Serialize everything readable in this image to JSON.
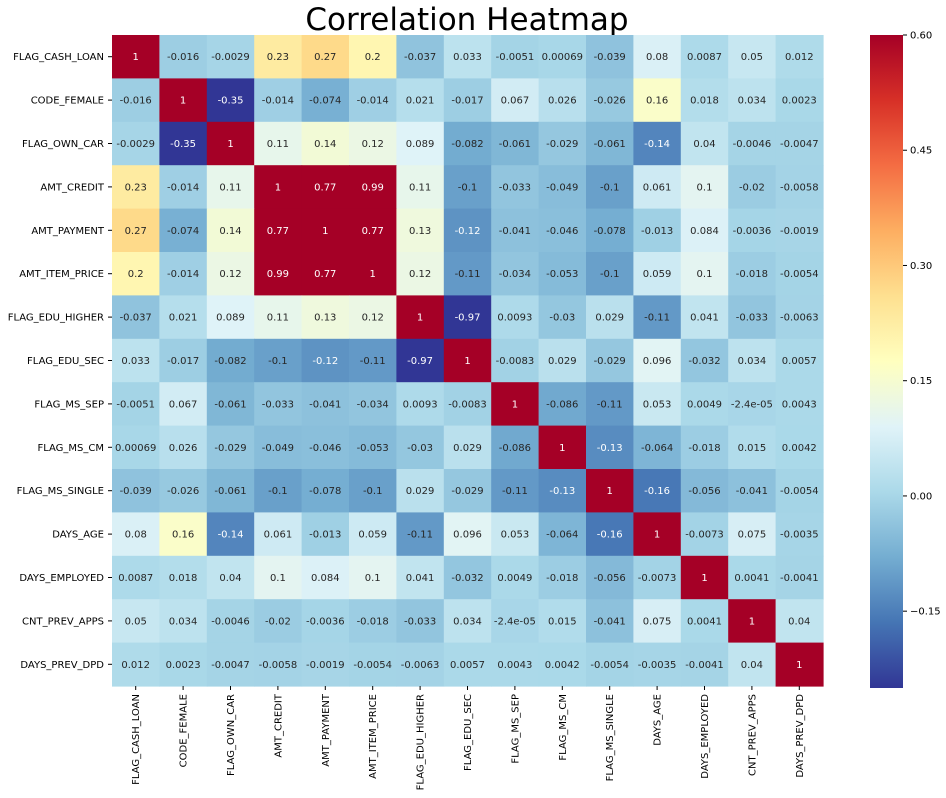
{
  "chart_data": {
    "type": "heatmap",
    "title": "Correlation Heatmap",
    "labels": [
      "FLAG_CASH_LOAN",
      "CODE_FEMALE",
      "FLAG_OWN_CAR",
      "AMT_CREDIT",
      "AMT_PAYMENT",
      "AMT_ITEM_PRICE",
      "FLAG_EDU_HIGHER",
      "FLAG_EDU_SEC",
      "FLAG_MS_SEP",
      "FLAG_MS_CM",
      "FLAG_MS_SINGLE",
      "DAYS_AGE",
      "DAYS_EMPLOYED",
      "CNT_PREV_APPS",
      "DAYS_PREV_DPD"
    ],
    "matrix": [
      [
        1,
        -0.016,
        -0.0029,
        0.23,
        0.27,
        0.2,
        -0.037,
        0.033,
        -0.0051,
        0.00069,
        -0.039,
        0.08,
        0.0087,
        0.05,
        0.012
      ],
      [
        -0.016,
        1,
        -0.35,
        -0.014,
        -0.074,
        -0.014,
        0.021,
        -0.017,
        0.067,
        0.026,
        -0.026,
        0.16,
        0.018,
        0.034,
        0.0023
      ],
      [
        -0.0029,
        -0.35,
        1,
        0.11,
        0.14,
        0.12,
        0.089,
        -0.082,
        -0.061,
        -0.029,
        -0.061,
        -0.14,
        0.04,
        -0.0046,
        -0.0047
      ],
      [
        0.23,
        -0.014,
        0.11,
        1,
        0.77,
        0.99,
        0.11,
        -0.1,
        -0.033,
        -0.049,
        -0.1,
        0.061,
        0.1,
        -0.02,
        -0.0058
      ],
      [
        0.27,
        -0.074,
        0.14,
        0.77,
        1,
        0.77,
        0.13,
        -0.12,
        -0.041,
        -0.046,
        -0.078,
        -0.013,
        0.084,
        -0.0036,
        -0.0019
      ],
      [
        0.2,
        -0.014,
        0.12,
        0.99,
        0.77,
        1,
        0.12,
        -0.11,
        -0.034,
        -0.053,
        -0.1,
        0.059,
        0.1,
        -0.018,
        -0.0054
      ],
      [
        -0.037,
        0.021,
        0.089,
        0.11,
        0.13,
        0.12,
        1,
        -0.97,
        0.0093,
        -0.03,
        0.029,
        -0.11,
        0.041,
        -0.033,
        -0.0063
      ],
      [
        0.033,
        -0.017,
        -0.082,
        -0.1,
        -0.12,
        -0.11,
        -0.97,
        1,
        -0.0083,
        0.029,
        -0.029,
        0.096,
        -0.032,
        0.034,
        0.0057
      ],
      [
        -0.0051,
        0.067,
        -0.061,
        -0.033,
        -0.041,
        -0.034,
        0.0093,
        -0.0083,
        1,
        -0.086,
        -0.11,
        0.053,
        0.0049,
        -2.4e-05,
        0.0043
      ],
      [
        0.00069,
        0.026,
        -0.029,
        -0.049,
        -0.046,
        -0.053,
        -0.03,
        0.029,
        -0.086,
        1,
        -0.13,
        -0.064,
        -0.018,
        0.015,
        0.0042
      ],
      [
        -0.039,
        -0.026,
        -0.061,
        -0.1,
        -0.078,
        -0.1,
        0.029,
        -0.029,
        -0.11,
        -0.13,
        1,
        -0.16,
        -0.056,
        -0.041,
        -0.0054
      ],
      [
        0.08,
        0.16,
        -0.14,
        0.061,
        -0.013,
        0.059,
        -0.11,
        0.096,
        0.053,
        -0.064,
        -0.16,
        1,
        -0.0073,
        0.075,
        -0.0035
      ],
      [
        0.0087,
        0.018,
        0.04,
        0.1,
        0.084,
        0.1,
        0.041,
        -0.032,
        0.0049,
        -0.018,
        -0.056,
        -0.0073,
        1,
        0.0041,
        -0.0041
      ],
      [
        0.05,
        0.034,
        -0.0046,
        -0.02,
        -0.0036,
        -0.018,
        -0.033,
        0.034,
        -2.4e-05,
        0.015,
        -0.041,
        0.075,
        0.0041,
        1,
        0.04
      ],
      [
        0.012,
        0.0023,
        -0.0047,
        -0.0058,
        -0.0019,
        -0.0054,
        -0.0063,
        0.0057,
        0.0043,
        0.0042,
        -0.0054,
        -0.0035,
        -0.0041,
        0.04,
        1
      ]
    ],
    "cell_text": [
      [
        "1",
        "-0.016",
        "-0.0029",
        "0.23",
        "0.27",
        "0.2",
        "-0.037",
        "0.033",
        "-0.0051",
        "0.00069",
        "-0.039",
        "0.08",
        "0.0087",
        "0.05",
        "0.012"
      ],
      [
        "-0.016",
        "1",
        "-0.35",
        "-0.014",
        "-0.074",
        "-0.014",
        "0.021",
        "-0.017",
        "0.067",
        "0.026",
        "-0.026",
        "0.16",
        "0.018",
        "0.034",
        "0.0023"
      ],
      [
        "-0.0029",
        "-0.35",
        "1",
        "0.11",
        "0.14",
        "0.12",
        "0.089",
        "-0.082",
        "-0.061",
        "-0.029",
        "-0.061",
        "-0.14",
        "0.04",
        "-0.0046",
        "-0.0047"
      ],
      [
        "0.23",
        "-0.014",
        "0.11",
        "1",
        "0.77",
        "0.99",
        "0.11",
        "-0.1",
        "-0.033",
        "-0.049",
        "-0.1",
        "0.061",
        "0.1",
        "-0.02",
        "-0.0058"
      ],
      [
        "0.27",
        "-0.074",
        "0.14",
        "0.77",
        "1",
        "0.77",
        "0.13",
        "-0.12",
        "-0.041",
        "-0.046",
        "-0.078",
        "-0.013",
        "0.084",
        "-0.0036",
        "-0.0019"
      ],
      [
        "0.2",
        "-0.014",
        "0.12",
        "0.99",
        "0.77",
        "1",
        "0.12",
        "-0.11",
        "-0.034",
        "-0.053",
        "-0.1",
        "0.059",
        "0.1",
        "-0.018",
        "-0.0054"
      ],
      [
        "-0.037",
        "0.021",
        "0.089",
        "0.11",
        "0.13",
        "0.12",
        "1",
        "-0.97",
        "0.0093",
        "-0.03",
        "0.029",
        "-0.11",
        "0.041",
        "-0.033",
        "-0.0063"
      ],
      [
        "0.033",
        "-0.017",
        "-0.082",
        "-0.1",
        "-0.12",
        "-0.11",
        "-0.97",
        "1",
        "-0.0083",
        "0.029",
        "-0.029",
        "0.096",
        "-0.032",
        "0.034",
        "0.0057"
      ],
      [
        "-0.0051",
        "0.067",
        "-0.061",
        "-0.033",
        "-0.041",
        "-0.034",
        "0.0093",
        "-0.0083",
        "1",
        "-0.086",
        "-0.11",
        "0.053",
        "0.0049",
        "-2.4e-05",
        "0.0043"
      ],
      [
        "0.00069",
        "0.026",
        "-0.029",
        "-0.049",
        "-0.046",
        "-0.053",
        "-0.03",
        "0.029",
        "-0.086",
        "1",
        "-0.13",
        "-0.064",
        "-0.018",
        "0.015",
        "0.0042"
      ],
      [
        "-0.039",
        "-0.026",
        "-0.061",
        "-0.1",
        "-0.078",
        "-0.1",
        "0.029",
        "-0.029",
        "-0.11",
        "-0.13",
        "1",
        "-0.16",
        "-0.056",
        "-0.041",
        "-0.0054"
      ],
      [
        "0.08",
        "0.16",
        "-0.14",
        "0.061",
        "-0.013",
        "0.059",
        "-0.11",
        "0.096",
        "0.053",
        "-0.064",
        "-0.16",
        "1",
        "-0.0073",
        "0.075",
        "-0.0035"
      ],
      [
        "0.0087",
        "0.018",
        "0.04",
        "0.1",
        "0.084",
        "0.1",
        "0.041",
        "-0.032",
        "0.0049",
        "-0.018",
        "-0.056",
        "-0.0073",
        "1",
        "0.0041",
        "-0.0041"
      ],
      [
        "0.05",
        "0.034",
        "-0.0046",
        "-0.02",
        "-0.0036",
        "-0.018",
        "-0.033",
        "0.034",
        "-2.4e-05",
        "0.015",
        "-0.041",
        "0.075",
        "0.0041",
        "1",
        "0.04"
      ],
      [
        "0.012",
        "0.0023",
        "-0.0047",
        "-0.0058",
        "-0.0019",
        "-0.0054",
        "-0.0063",
        "0.0057",
        "0.0043",
        "0.0042",
        "-0.0054",
        "-0.0035",
        "-0.0041",
        "0.04",
        "1"
      ]
    ],
    "colormap": "RdYlBu_r",
    "color_range": [
      -0.25,
      0.6
    ],
    "colorbar_ticks": [
      -0.15,
      0.0,
      0.15,
      0.3,
      0.45,
      0.6
    ],
    "colorbar_tick_labels": [
      "−0.15",
      "0.00",
      "0.15",
      "0.30",
      "0.45",
      "0.60"
    ],
    "colorbar_placement": "right",
    "grid": false
  }
}
